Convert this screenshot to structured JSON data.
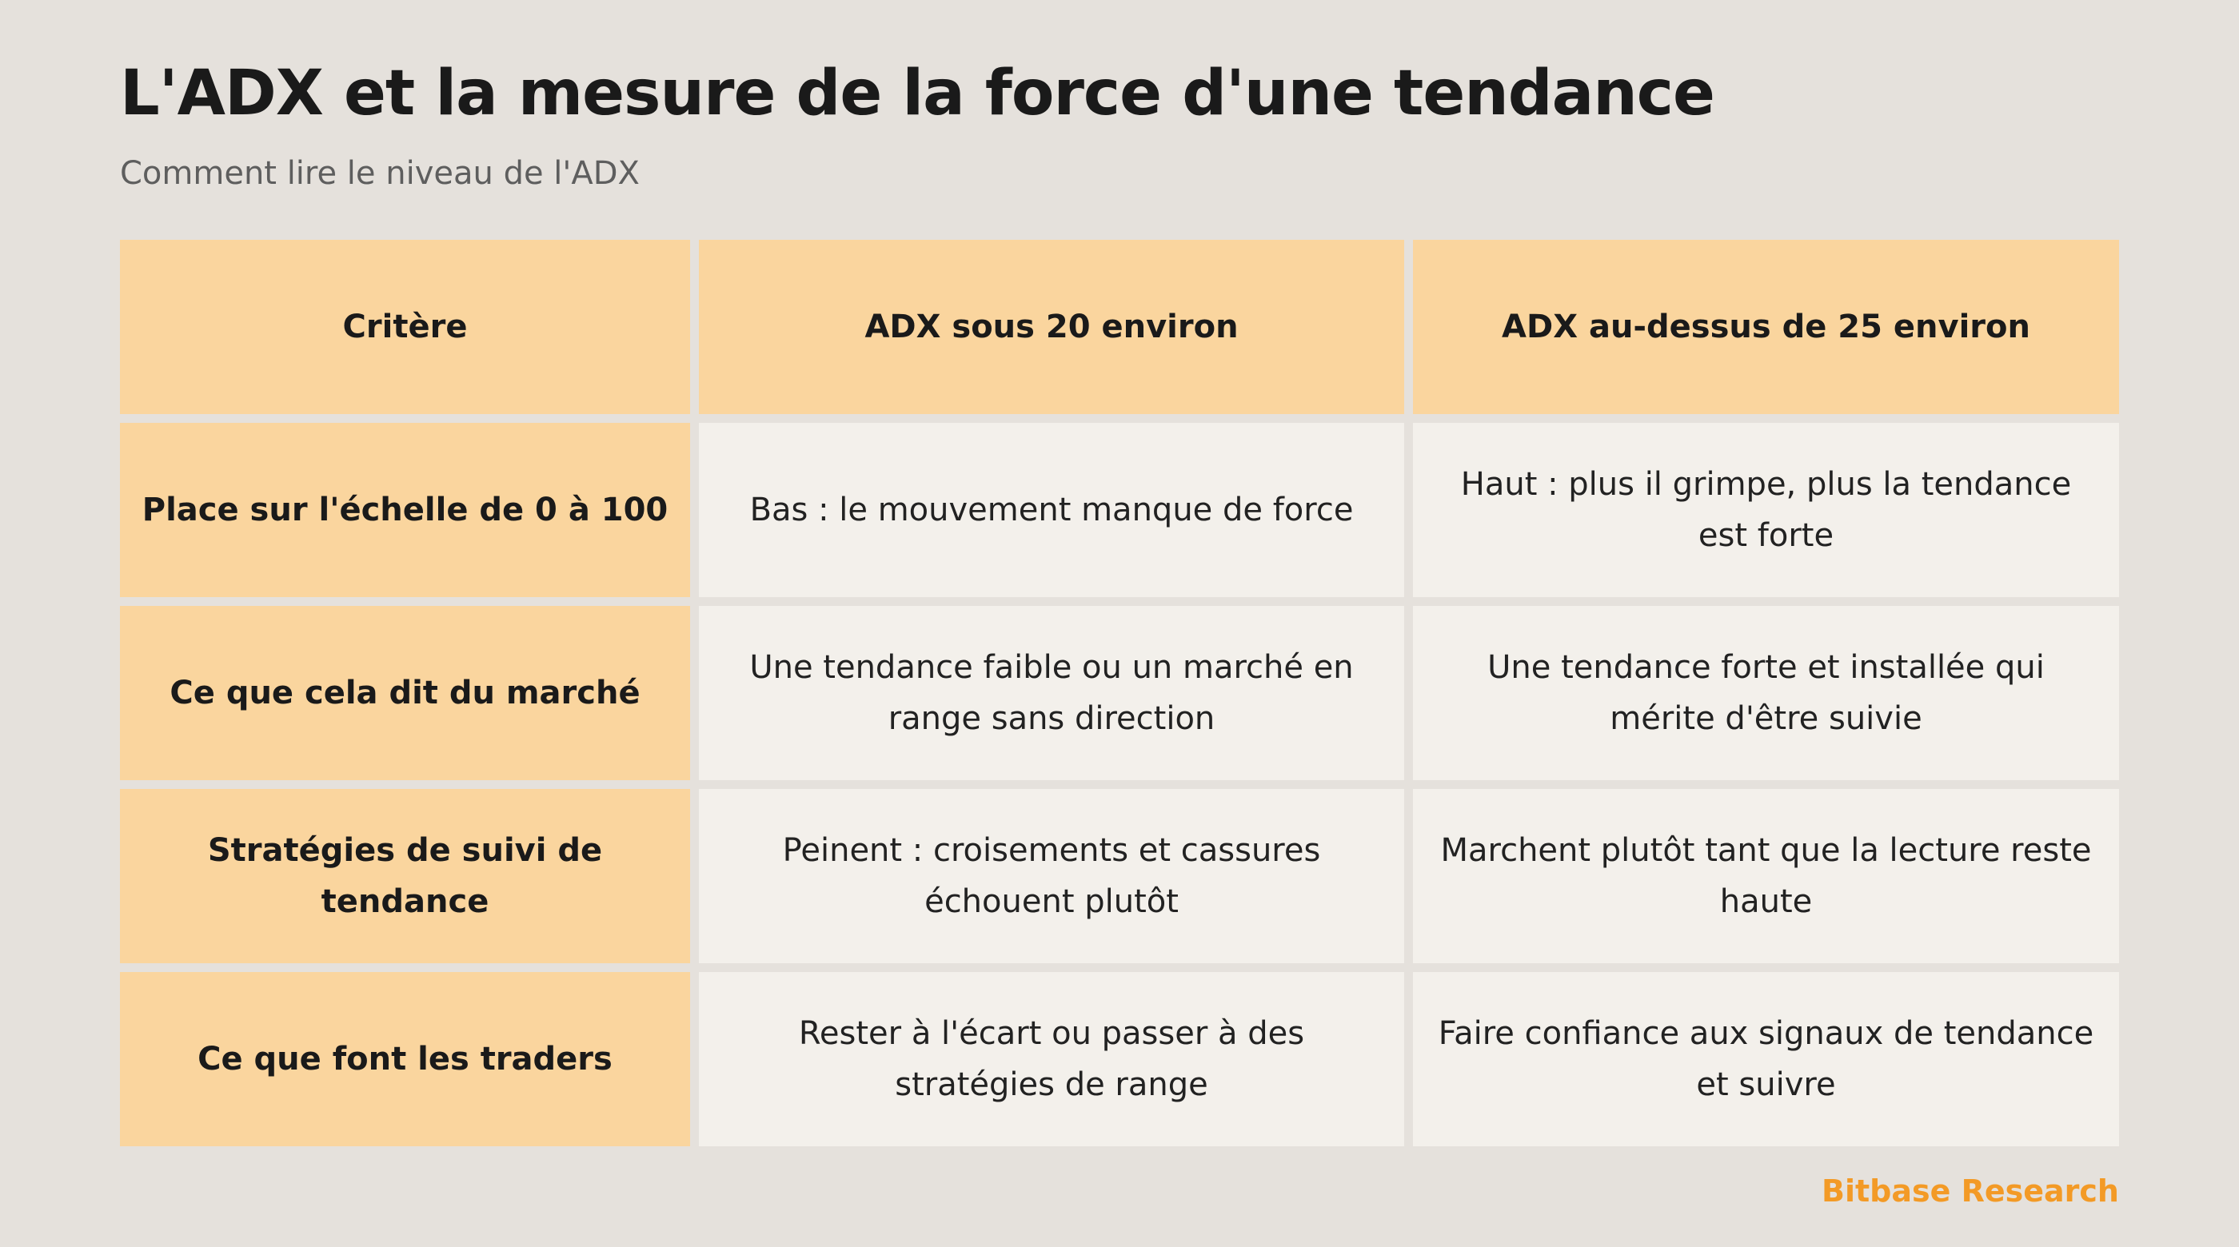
{
  "title": "L'ADX et la mesure de la force d'une tendance",
  "subtitle": "Comment lire le niveau de l'ADX",
  "table": {
    "headers": [
      "Critère",
      "ADX sous 20 environ",
      "ADX au-dessus de 25 environ"
    ],
    "rows": [
      {
        "criterion": "Place sur l'échelle de 0 à 100",
        "low": "Bas : le mouvement manque de force",
        "high": "Haut : plus il grimpe, plus la tendance est forte"
      },
      {
        "criterion": "Ce que cela dit du marché",
        "low": "Une tendance faible ou un marché en range sans direction",
        "high": "Une tendance forte et installée qui mérite d'être suivie"
      },
      {
        "criterion": "Stratégies de suivi de tendance",
        "low": "Peinent : croisements et cassures échouent plutôt",
        "high": "Marchent plutôt tant que la lecture reste haute"
      },
      {
        "criterion": "Ce que font les traders",
        "low": "Rester à l'écart ou passer à des stratégies de range",
        "high": "Faire confiance aux signaux de tendance et suivre"
      }
    ]
  },
  "brand": "Bitbase Research",
  "colors": {
    "background": "#e5e1dc",
    "header_fill": "#fad59e",
    "cell_fill": "#f3f0eb",
    "brand": "#f39a26"
  }
}
